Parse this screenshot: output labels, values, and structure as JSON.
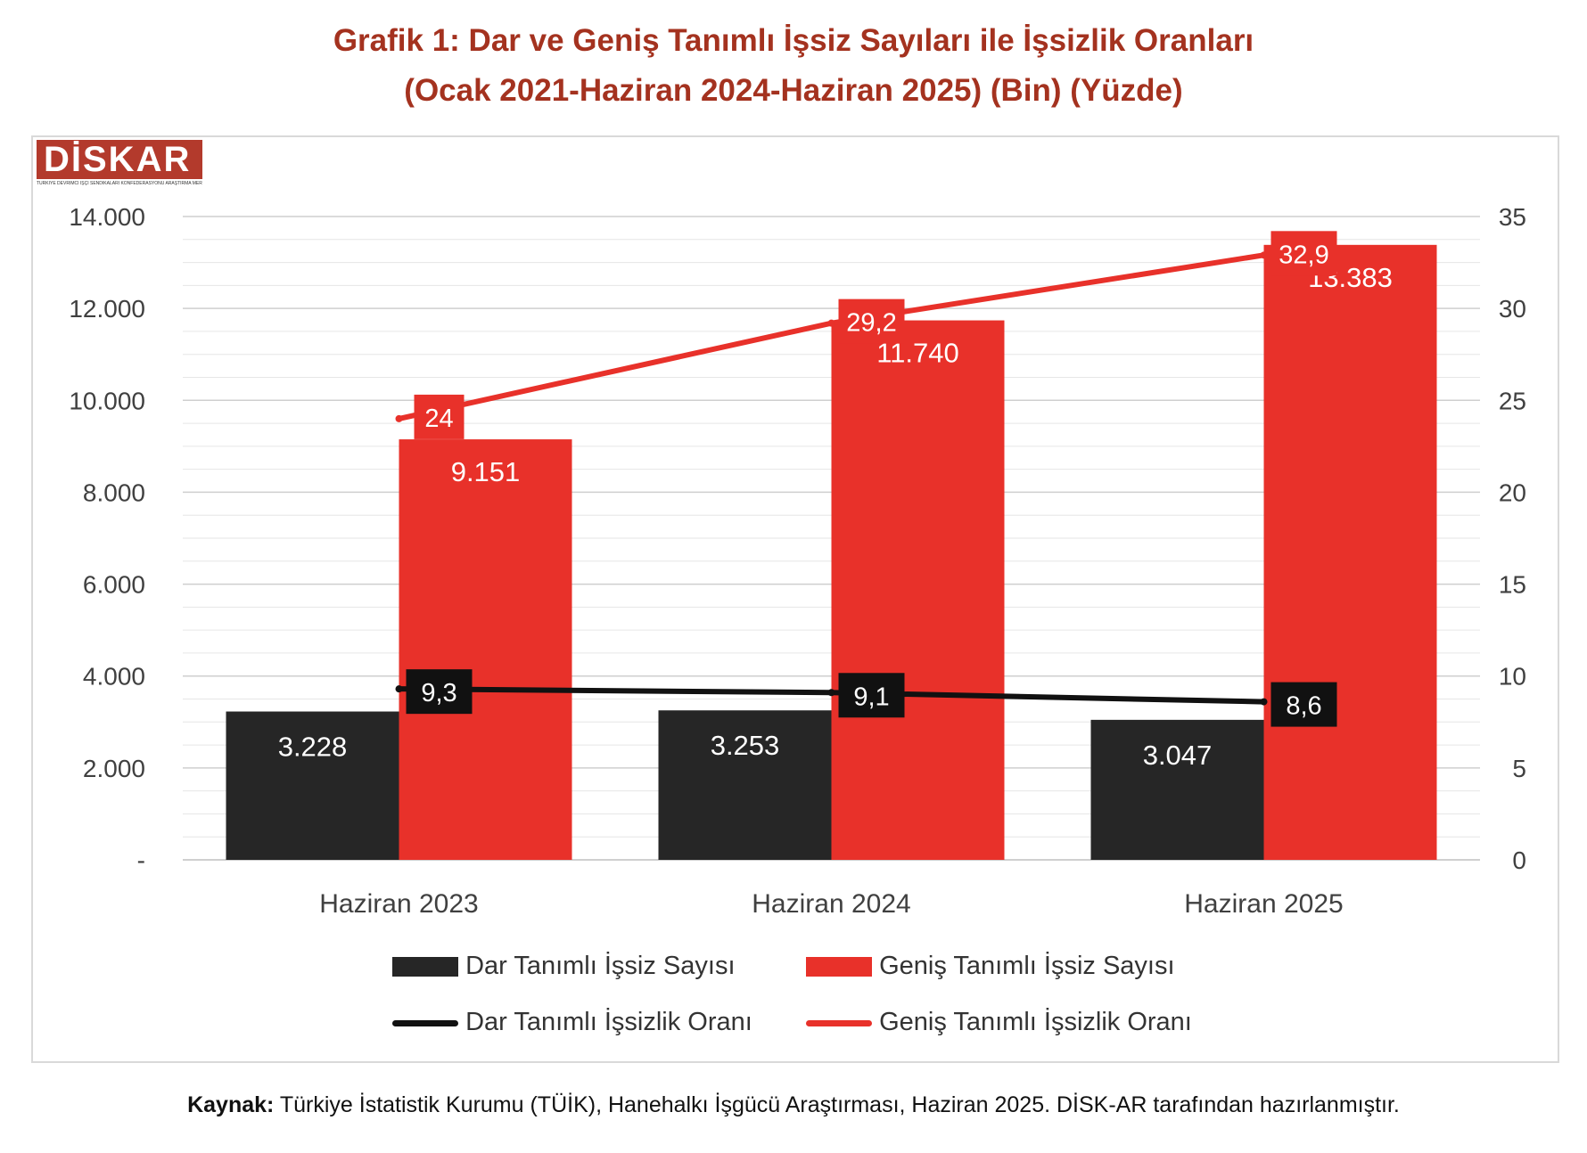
{
  "title_line1": "Grafik 1: Dar ve Geniş Tanımlı İşsiz Sayıları ile İşsizlik Oranları",
  "title_line2": "(Ocak 2021-Haziran 2024-Haziran 2025) (Bin) (Yüzde)",
  "logo": {
    "text": "DİSKAR",
    "subtitle": "TÜRKİYE DEVRİMCİ İŞÇİ SENDİKALARI KONFEDERASYONU ARAŞTIRMA MERKEZİ"
  },
  "colors": {
    "dark": "#262626",
    "red": "#e8312a",
    "grid": "#d9d9d9",
    "title": "#a4321f"
  },
  "source": {
    "label": "Kaynak:",
    "text": "Türkiye İstatistik Kurumu (TÜİK), Hanehalkı İşgücü Araştırması, Haziran 2025. DİSK-AR tarafından hazırlanmıştır."
  },
  "chart_data": {
    "type": "bar",
    "categories": [
      "Haziran 2023",
      "Haziran 2024",
      "Haziran 2025"
    ],
    "series": [
      {
        "name": "Dar Tanımlı İşsiz Sayısı",
        "kind": "bar",
        "axis": "left",
        "color": "#262626",
        "values": [
          3228,
          3253,
          3047
        ],
        "labels": [
          "3.228",
          "3.253",
          "3.047"
        ]
      },
      {
        "name": "Geniş Tanımlı İşsiz Sayısı",
        "kind": "bar",
        "axis": "left",
        "color": "#e8312a",
        "values": [
          9151,
          11740,
          13383
        ],
        "labels": [
          "9.151",
          "11.740",
          "13.383"
        ]
      },
      {
        "name": "Dar Tanımlı İşsizlik Oranı",
        "kind": "line",
        "axis": "right",
        "color": "#111111",
        "values": [
          9.3,
          9.1,
          8.6
        ],
        "labels": [
          "9,3",
          "9,1",
          "8,6"
        ]
      },
      {
        "name": "Geniş Tanımlı İşsizlik Oranı",
        "kind": "line",
        "axis": "right",
        "color": "#e8312a",
        "values": [
          24,
          29.2,
          32.9
        ],
        "labels": [
          "24",
          "29,2",
          "32,9"
        ]
      }
    ],
    "y_left": {
      "min": 0,
      "max": 14000,
      "ticks": [
        0,
        2000,
        4000,
        6000,
        8000,
        10000,
        12000,
        14000
      ],
      "tick_labels": [
        "-",
        "2.000",
        "4.000",
        "6.000",
        "8.000",
        "10.000",
        "12.000",
        "14.000"
      ]
    },
    "y_right": {
      "min": 0,
      "max": 35,
      "ticks": [
        0,
        5,
        10,
        15,
        20,
        25,
        30,
        35
      ],
      "tick_labels": [
        "0",
        "5",
        "10",
        "15",
        "20",
        "25",
        "30",
        "35"
      ]
    },
    "grid": true,
    "legend_position": "bottom"
  }
}
